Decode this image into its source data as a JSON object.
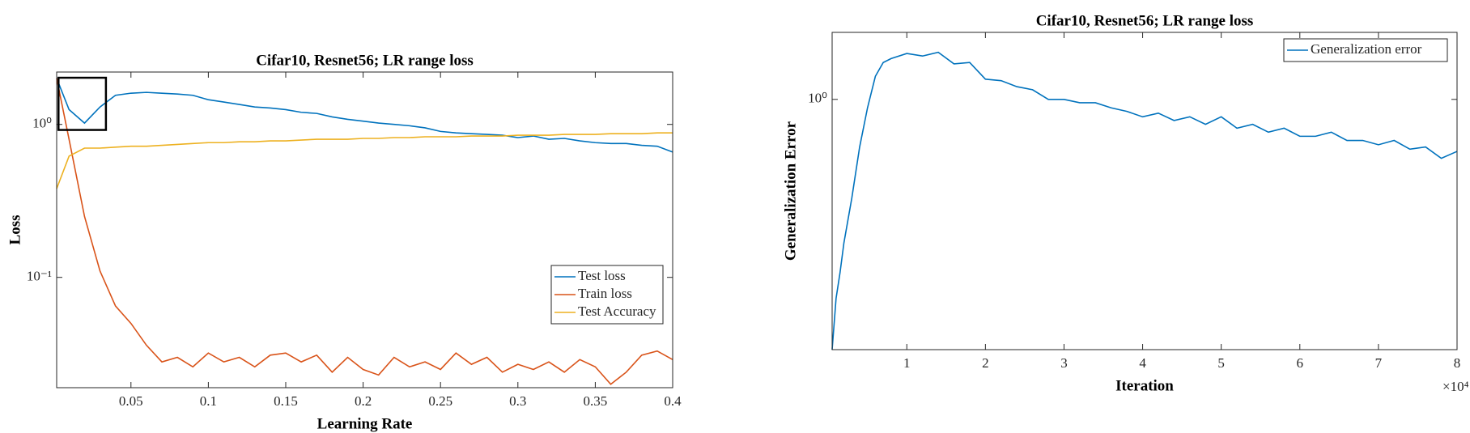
{
  "chart_data": [
    {
      "type": "line",
      "title": "Cifar10, Resnet56; LR range loss",
      "xlabel": "Learning Rate",
      "ylabel": "Loss",
      "yscale": "log",
      "grid": false,
      "legend": "lower right",
      "xlim": [
        0.002,
        0.4
      ],
      "ylim": [
        0.019,
        2.2
      ],
      "xticks": [
        0.05,
        0.1,
        0.15,
        0.2,
        0.25,
        0.3,
        0.35,
        0.4
      ],
      "yticks": [
        {
          "value": 0.1,
          "label": "10⁻¹"
        },
        {
          "value": 1,
          "label": "10⁰"
        }
      ],
      "x": [
        0.002,
        0.01,
        0.02,
        0.03,
        0.04,
        0.05,
        0.06,
        0.07,
        0.08,
        0.09,
        0.1,
        0.11,
        0.12,
        0.13,
        0.14,
        0.15,
        0.16,
        0.17,
        0.18,
        0.19,
        0.2,
        0.21,
        0.22,
        0.23,
        0.24,
        0.25,
        0.26,
        0.27,
        0.28,
        0.29,
        0.3,
        0.31,
        0.32,
        0.33,
        0.34,
        0.35,
        0.36,
        0.37,
        0.38,
        0.39,
        0.4
      ],
      "series": [
        {
          "name": "Test loss",
          "color": "#0072bd",
          "values": [
            2.0,
            1.25,
            1.02,
            1.3,
            1.55,
            1.6,
            1.62,
            1.6,
            1.58,
            1.55,
            1.45,
            1.4,
            1.35,
            1.3,
            1.28,
            1.25,
            1.2,
            1.18,
            1.12,
            1.08,
            1.05,
            1.02,
            1.0,
            0.98,
            0.95,
            0.9,
            0.88,
            0.87,
            0.86,
            0.85,
            0.82,
            0.84,
            0.8,
            0.81,
            0.78,
            0.76,
            0.75,
            0.75,
            0.73,
            0.72,
            0.66
          ]
        },
        {
          "name": "Train loss",
          "color": "#d95319",
          "values": [
            2.0,
            0.8,
            0.25,
            0.11,
            0.065,
            0.05,
            0.036,
            0.028,
            0.03,
            0.026,
            0.032,
            0.028,
            0.03,
            0.026,
            0.031,
            0.032,
            0.028,
            0.031,
            0.024,
            0.03,
            0.025,
            0.023,
            0.03,
            0.026,
            0.028,
            0.025,
            0.032,
            0.027,
            0.03,
            0.024,
            0.027,
            0.025,
            0.028,
            0.024,
            0.029,
            0.026,
            0.02,
            0.024,
            0.031,
            0.033,
            0.029
          ]
        },
        {
          "name": "Test Accuracy",
          "color": "#edb120",
          "values": [
            0.38,
            0.62,
            0.7,
            0.7,
            0.71,
            0.72,
            0.72,
            0.73,
            0.74,
            0.75,
            0.76,
            0.76,
            0.77,
            0.77,
            0.78,
            0.78,
            0.79,
            0.8,
            0.8,
            0.8,
            0.81,
            0.81,
            0.82,
            0.82,
            0.83,
            0.83,
            0.83,
            0.84,
            0.84,
            0.84,
            0.85,
            0.85,
            0.85,
            0.86,
            0.86,
            0.86,
            0.87,
            0.87,
            0.87,
            0.88,
            0.88
          ]
        }
      ]
    },
    {
      "type": "line",
      "title": "Cifar10, Resnet56; LR range loss",
      "xlabel": "Iteration",
      "ylabel": "Generalization Error",
      "x_exponent_label": "×10⁴",
      "yscale": "log",
      "grid": false,
      "legend": "upper right",
      "xlim": [
        500,
        80000
      ],
      "ylim": [
        0.22,
        1.5
      ],
      "xticks": [
        {
          "value": 10000,
          "label": "1"
        },
        {
          "value": 20000,
          "label": "2"
        },
        {
          "value": 30000,
          "label": "3"
        },
        {
          "value": 40000,
          "label": "4"
        },
        {
          "value": 50000,
          "label": "5"
        },
        {
          "value": 60000,
          "label": "6"
        },
        {
          "value": 70000,
          "label": "7"
        },
        {
          "value": 80000,
          "label": "8"
        }
      ],
      "yticks": [
        {
          "value": 1,
          "label": "10⁰"
        }
      ],
      "x": [
        500,
        1000,
        1500,
        2000,
        3000,
        4000,
        5000,
        6000,
        7000,
        8000,
        10000,
        12000,
        14000,
        16000,
        18000,
        20000,
        22000,
        24000,
        26000,
        28000,
        30000,
        32000,
        34000,
        36000,
        38000,
        40000,
        42000,
        44000,
        46000,
        48000,
        50000,
        52000,
        54000,
        56000,
        58000,
        60000,
        62000,
        64000,
        66000,
        68000,
        70000,
        72000,
        74000,
        76000,
        78000,
        80000
      ],
      "series": [
        {
          "name": "Generalization error",
          "color": "#0072bd",
          "values": [
            0.22,
            0.3,
            0.35,
            0.42,
            0.55,
            0.75,
            0.95,
            1.15,
            1.25,
            1.28,
            1.32,
            1.3,
            1.33,
            1.24,
            1.25,
            1.13,
            1.12,
            1.08,
            1.06,
            1.0,
            1.0,
            0.98,
            0.98,
            0.95,
            0.93,
            0.9,
            0.92,
            0.88,
            0.9,
            0.86,
            0.9,
            0.84,
            0.86,
            0.82,
            0.84,
            0.8,
            0.8,
            0.82,
            0.78,
            0.78,
            0.76,
            0.78,
            0.74,
            0.75,
            0.7,
            0.73
          ]
        }
      ]
    }
  ]
}
